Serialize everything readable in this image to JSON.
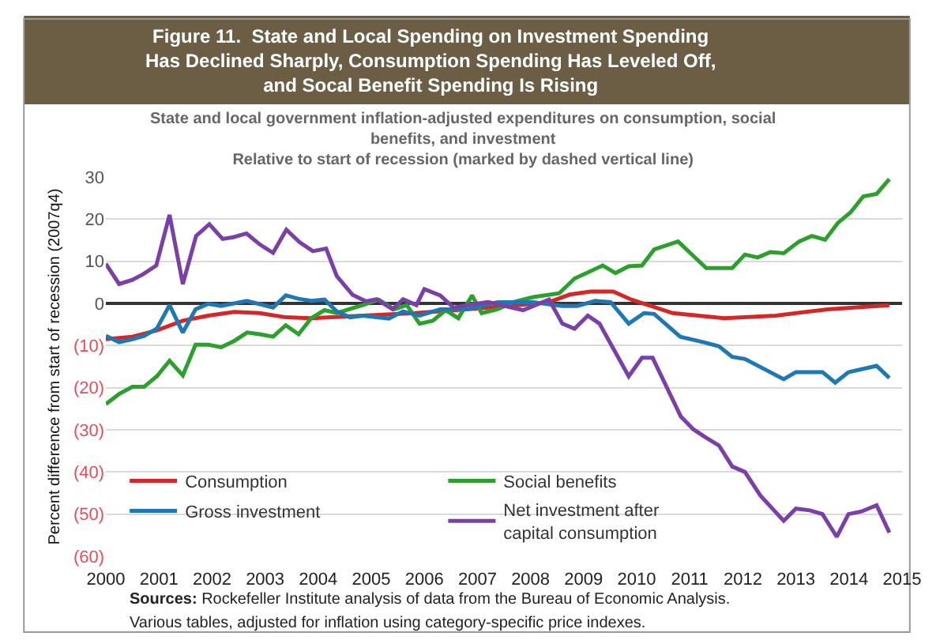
{
  "chart_data": {
    "type": "line",
    "title": "Figure 11.  State and Local Spending on Investment Spending\nHas Declined Sharply, Consumption Spending Has Leveled Off,\nand Socal Benefit Spending Is Rising",
    "subtitle": "State and local government inflation-adjusted expenditures on consumption, social\nbenefits, and investment\nRelative to start of recession (marked by dashed vertical line)",
    "ylabel": "Percent difference from start of recession (2007q4)",
    "annotations": [
      "Sources: Rockefeller Institute analysis of data from the Bureau of Economic Analysis.",
      "Various tables, adjusted for inflation using category-specific price indexes."
    ],
    "xlim": [
      2000,
      2015
    ],
    "xticks": [
      2000,
      2001,
      2002,
      2003,
      2004,
      2005,
      2006,
      2007,
      2008,
      2009,
      2010,
      2011,
      2012,
      2013,
      2014,
      2015
    ],
    "ylim": [
      -60,
      30
    ],
    "yticks": [
      30,
      20,
      10,
      0,
      {
        "value": -10,
        "label": "(10)"
      },
      {
        "value": -20,
        "label": "(20)"
      },
      {
        "value": -30,
        "label": "(30)"
      },
      {
        "value": -40,
        "label": "(40)"
      },
      {
        "value": -50,
        "label": "(50)"
      },
      {
        "value": -60,
        "label": "(60)"
      }
    ],
    "grid": "y",
    "legend": "bottom left",
    "marker": "none",
    "line_style": "solid",
    "series": [
      {
        "name": "Consumption",
        "color": "#d62728",
        "x": [
          2000,
          2000.5,
          2000.96,
          2001.45,
          2001.93,
          2002.42,
          2002.9,
          2003.39,
          2003.87,
          2004.84,
          2005.82,
          2006.79,
          2007.76,
          2008.35,
          2008.74,
          2009.13,
          2009.56,
          2009.9,
          2010.68,
          2011.65,
          2012.62,
          2013.6,
          2014.76
        ],
        "values": [
          -8.5,
          -7.9,
          -6.4,
          -4.1,
          -2.9,
          -2,
          -2.3,
          -3.3,
          -3.5,
          -2.9,
          -2.3,
          -1.4,
          -0.4,
          0.3,
          2.1,
          2.8,
          2.8,
          0.9,
          -2.3,
          -3.5,
          -2.9,
          -1.4,
          -0.4
        ]
      },
      {
        "name": "Social benefits",
        "color": "#2ca02c",
        "x": [
          2000,
          2000.25,
          2000.5,
          2000.72,
          2000.96,
          2001.2,
          2001.45,
          2001.69,
          2001.93,
          2002.17,
          2002.42,
          2002.66,
          2002.9,
          2003.15,
          2003.39,
          2003.63,
          2003.87,
          2004.12,
          2004.35,
          2004.84,
          2005.14,
          2005.43,
          2005.67,
          2005.91,
          2006.16,
          2006.4,
          2006.64,
          2006.9,
          2007.08,
          2007.38,
          2007.67,
          2008.05,
          2008.54,
          2008.83,
          2009.36,
          2009.6,
          2009.85,
          2010.1,
          2010.33,
          2010.78,
          2011.31,
          2011.8,
          2012.04,
          2012.28,
          2012.52,
          2012.77,
          2013.06,
          2013.3,
          2013.55,
          2013.79,
          2014.03,
          2014.27,
          2014.52,
          2014.76
        ],
        "values": [
          -23.9,
          -21.5,
          -19.8,
          -19.8,
          -17.3,
          -13.6,
          -17.1,
          -9.8,
          -9.8,
          -10.4,
          -8.9,
          -6.9,
          -7.3,
          -7.9,
          -5.2,
          -7.3,
          -3.5,
          -1.6,
          -2.3,
          -0.4,
          0.9,
          -1.4,
          -0.4,
          -4.8,
          -4.1,
          -1.6,
          -3.5,
          1.9,
          -2.3,
          -1.4,
          0.3,
          1.5,
          2.4,
          5.9,
          9,
          7.2,
          8.8,
          9,
          12.8,
          14.7,
          8.4,
          8.4,
          11.6,
          10.9,
          12.2,
          11.9,
          14.7,
          16,
          15.1,
          19.1,
          21.6,
          25.4,
          26,
          29.5
        ]
      },
      {
        "name": "Gross investment",
        "color": "#1f77b4",
        "x": [
          2000,
          2000.25,
          2000.5,
          2000.72,
          2000.96,
          2001.2,
          2001.45,
          2001.69,
          2001.93,
          2002.17,
          2002.66,
          2003.15,
          2003.39,
          2003.63,
          2003.87,
          2004.12,
          2004.35,
          2004.6,
          2004.84,
          2005.33,
          2005.6,
          2005.91,
          2006.3,
          2006.79,
          2007.38,
          2008.05,
          2008.6,
          2008.88,
          2009.22,
          2009.51,
          2009.85,
          2010.14,
          2010.33,
          2010.82,
          2011.26,
          2011.55,
          2011.8,
          2012.04,
          2012.77,
          2013.0,
          2013.5,
          2013.74,
          2013.99,
          2014.52,
          2014.76
        ],
        "values": [
          -7.7,
          -9.2,
          -8.5,
          -7.7,
          -6,
          -0.4,
          -6.9,
          -1.4,
          -0.1,
          -0.6,
          0.6,
          -1,
          1.9,
          1.1,
          0.6,
          0.9,
          -1.9,
          -3.3,
          -2.9,
          -3.6,
          -1.9,
          -2.9,
          -1.4,
          -1.4,
          0.3,
          0.3,
          -0.6,
          -0.6,
          0.6,
          0.3,
          -4.8,
          -2.3,
          -2.5,
          -7.9,
          -9.2,
          -10.2,
          -12.7,
          -13.2,
          -18,
          -16.3,
          -16.3,
          -18.8,
          -16.3,
          -14.8,
          -17.7
        ]
      },
      {
        "name": "Net investment after\ncapital consumption",
        "color": "#7b3fa8",
        "x": [
          2000,
          2000.25,
          2000.5,
          2000.7,
          2000.95,
          2001.2,
          2001.45,
          2001.7,
          2001.95,
          2002.2,
          2002.4,
          2002.65,
          2002.9,
          2003.15,
          2003.4,
          2003.65,
          2003.9,
          2004.15,
          2004.35,
          2004.65,
          2004.9,
          2005.1,
          2005.4,
          2005.6,
          2005.85,
          2006.0,
          2006.3,
          2006.55,
          2006.8,
          2007.2,
          2007.86,
          2008.35,
          2008.6,
          2008.83,
          2009.08,
          2009.3,
          2009.85,
          2010.1,
          2010.3,
          2010.83,
          2011.07,
          2011.3,
          2011.55,
          2011.8,
          2012.04,
          2012.33,
          2012.77,
          2013.0,
          2013.26,
          2013.5,
          2013.77,
          2013.99,
          2014.23,
          2014.52,
          2014.76
        ],
        "values": [
          9.4,
          4.6,
          5.6,
          6.9,
          9,
          21,
          4.6,
          16,
          18.8,
          15.3,
          15.7,
          16.6,
          14,
          12,
          17.5,
          14.5,
          12.4,
          13,
          6.5,
          2,
          0.5,
          1,
          -1.4,
          1,
          -0.4,
          3.4,
          1.9,
          -1,
          -0.4,
          0.3,
          -1.6,
          0.9,
          -4.8,
          -6,
          -2.9,
          -4.8,
          -17.3,
          -12.9,
          -12.9,
          -26.8,
          -29.9,
          -31.8,
          -33.7,
          -38.7,
          -40,
          -45.6,
          -51.6,
          -48.7,
          -49.1,
          -50,
          -55.4,
          -50,
          -49.4,
          -47.9,
          -54.4
        ]
      }
    ]
  }
}
